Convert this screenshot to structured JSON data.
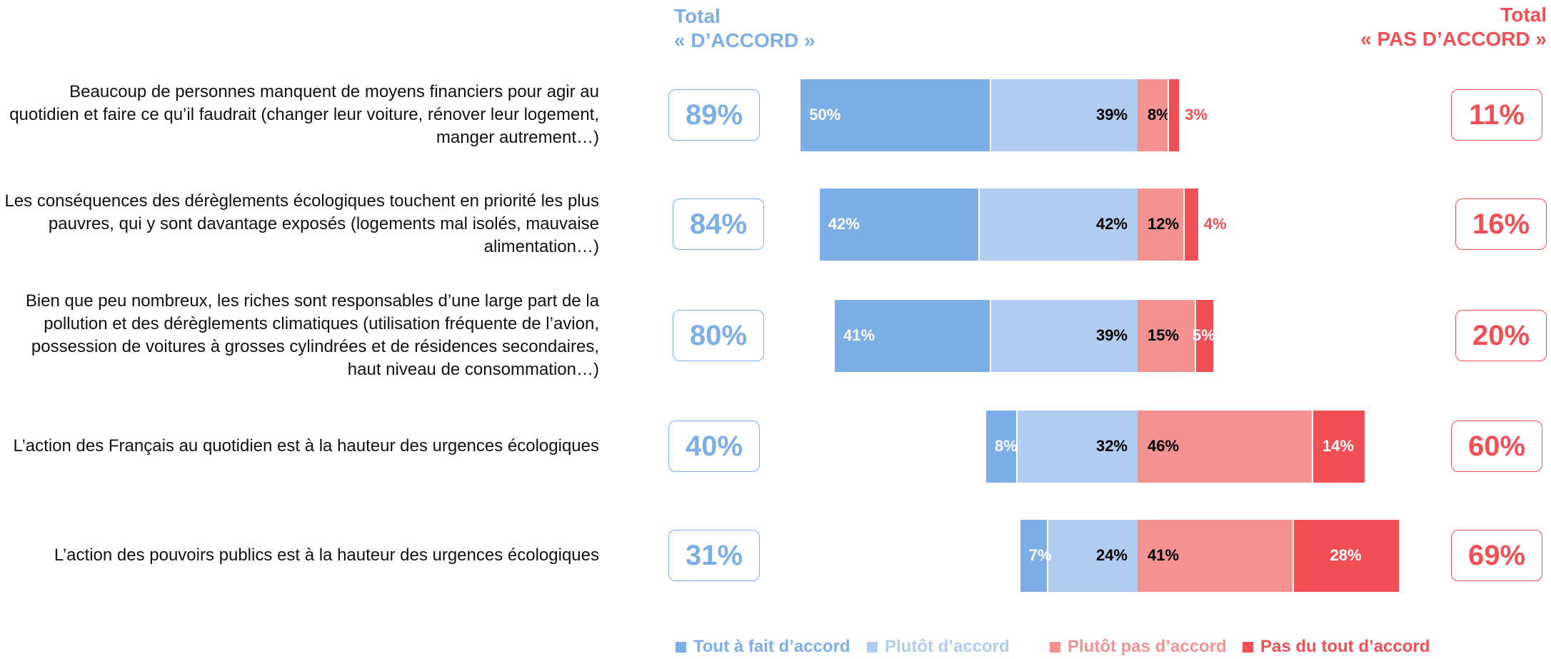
{
  "chart_data": {
    "type": "diverging-bar",
    "header_agree": [
      "Total",
      "« D’ACCORD »"
    ],
    "header_disagree": [
      "Total",
      "« PAS D’ACCORD »"
    ],
    "categories": [
      "Beaucoup de personnes manquent de moyens financiers pour agir au quotidien et faire ce qu’il faudrait (changer leur voiture, rénover leur logement, manger autrement…)",
      "Les conséquences des dérèglements écologiques touchent en priorité les plus pauvres, qui y sont davantage exposés (logements mal isolés, mauvaise alimentation…)",
      "Bien que peu nombreux, les riches sont responsables d’une large part de la pollution et des dérèglements climatiques (utilisation fréquente de l’avion, possession de voitures à grosses cylindrées et de résidences secondaires, haut niveau de consommation…)",
      "L’action des Français au quotidien est à la hauteur des urgences écologiques",
      "L’action des pouvoirs publics est à la hauteur des urgences écologiques"
    ],
    "series": [
      {
        "name": "Tout à fait d’accord",
        "color": "#7eaee6",
        "side": "agree",
        "values": [
          50,
          42,
          41,
          8,
          7
        ],
        "value_labels": [
          "50%",
          "42%",
          "41%",
          "8%",
          "7%"
        ]
      },
      {
        "name": "Plutôt d’accord",
        "color": "#b0cdf1",
        "side": "agree",
        "values": [
          39,
          42,
          39,
          32,
          24
        ],
        "value_labels": [
          "39%",
          "42%",
          "39%",
          "32%",
          "24%"
        ]
      },
      {
        "name": "Plutôt pas d’accord",
        "color": "#f49191",
        "side": "disagree",
        "values": [
          8,
          12,
          15,
          46,
          41
        ],
        "value_labels": [
          "8%",
          "12%",
          "15%",
          "46%",
          "41%"
        ]
      },
      {
        "name": "Pas du tout d’accord",
        "color": "#ef4f55",
        "side": "disagree",
        "values": [
          3,
          4,
          5,
          14,
          28
        ],
        "value_labels": [
          "3%",
          "4%",
          "5%",
          "14%",
          "28%"
        ]
      }
    ],
    "totals": {
      "agree": {
        "color": "#7eaee6",
        "values": [
          89,
          84,
          80,
          40,
          31
        ],
        "value_labels": [
          "89%",
          "84%",
          "80%",
          "40%",
          "31%"
        ]
      },
      "disagree": {
        "color": "#ef4f55",
        "values": [
          11,
          16,
          20,
          60,
          69
        ],
        "value_labels": [
          "11%",
          "16%",
          "20%",
          "60%",
          "69%"
        ]
      }
    }
  }
}
